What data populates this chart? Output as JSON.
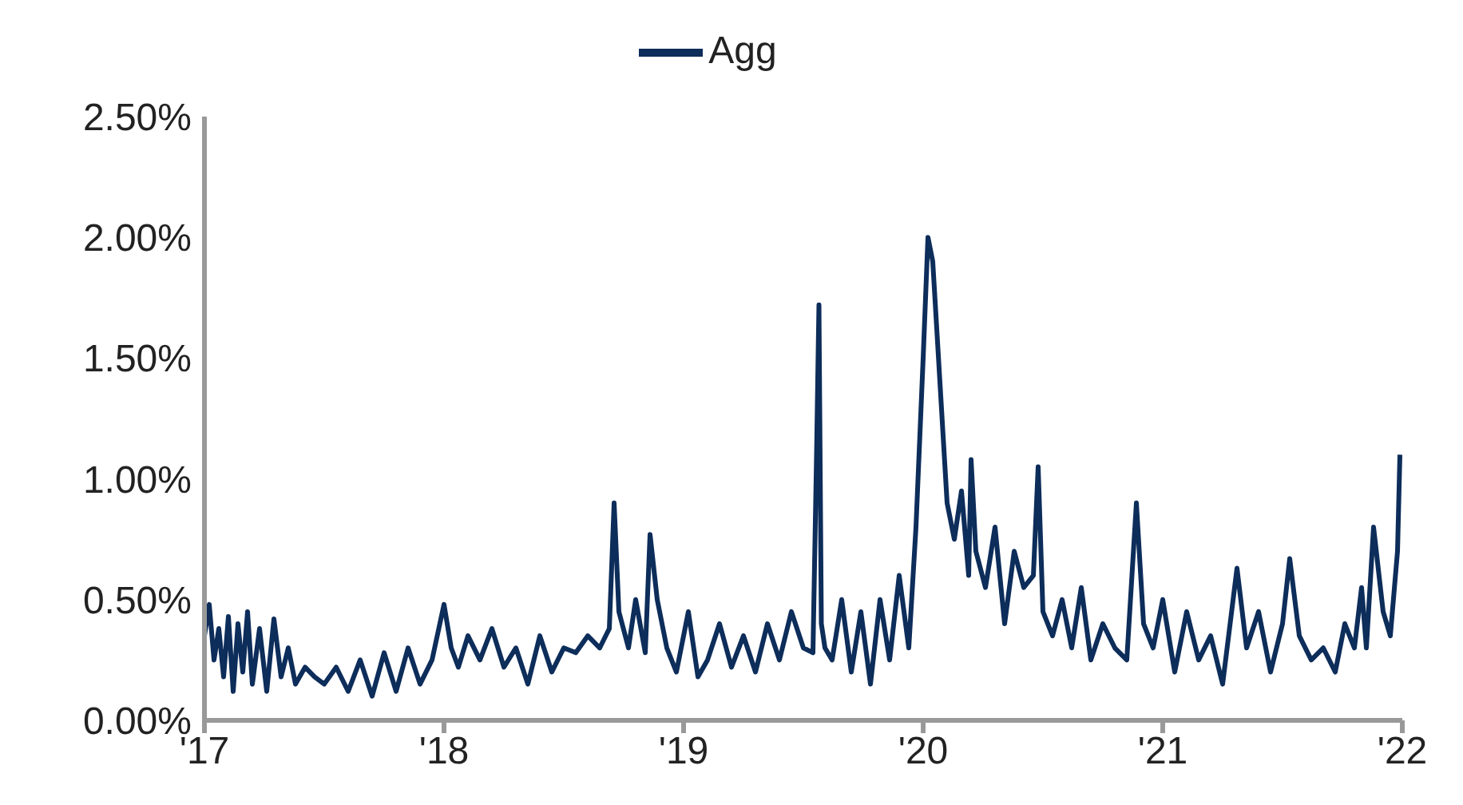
{
  "chart_data": {
    "type": "line",
    "legend": "top",
    "grid": false,
    "marker": "none",
    "line_style": "solid",
    "x": [
      2017,
      2017.02,
      2017.04,
      2017.06,
      2017.08,
      2017.1,
      2017.12,
      2017.14,
      2017.16,
      2017.18,
      2017.2,
      2017.23,
      2017.26,
      2017.29,
      2017.32,
      2017.35,
      2017.38,
      2017.42,
      2017.46,
      2017.5,
      2017.55,
      2017.6,
      2017.65,
      2017.7,
      2017.75,
      2017.8,
      2017.85,
      2017.9,
      2017.95,
      2018,
      2018.03,
      2018.06,
      2018.1,
      2018.15,
      2018.2,
      2018.25,
      2018.3,
      2018.35,
      2018.4,
      2018.45,
      2018.5,
      2018.55,
      2018.6,
      2018.65,
      2018.69,
      2018.71,
      2018.73,
      2018.77,
      2018.8,
      2018.84,
      2018.86,
      2018.89,
      2018.93,
      2018.97,
      2019.02,
      2019.06,
      2019.1,
      2019.15,
      2019.2,
      2019.25,
      2019.3,
      2019.35,
      2019.4,
      2019.45,
      2019.5,
      2019.54,
      2019.555,
      2019.565,
      2019.575,
      2019.59,
      2019.62,
      2019.66,
      2019.7,
      2019.74,
      2019.78,
      2019.82,
      2019.86,
      2019.9,
      2019.94,
      2019.97,
      2020,
      2020.02,
      2020.04,
      2020.07,
      2020.1,
      2020.13,
      2020.16,
      2020.19,
      2020.2,
      2020.22,
      2020.26,
      2020.3,
      2020.34,
      2020.38,
      2020.42,
      2020.46,
      2020.48,
      2020.5,
      2020.54,
      2020.58,
      2020.62,
      2020.66,
      2020.7,
      2020.75,
      2020.8,
      2020.85,
      2020.89,
      2020.92,
      2020.96,
      2021,
      2021.05,
      2021.1,
      2021.15,
      2021.2,
      2021.25,
      2021.31,
      2021.35,
      2021.4,
      2021.45,
      2021.5,
      2021.53,
      2021.57,
      2021.62,
      2021.67,
      2021.72,
      2021.76,
      2021.8,
      2021.83,
      2021.85,
      2021.88,
      2021.92,
      2021.95,
      2021.98,
      2021.99
    ],
    "series": [
      {
        "name": "Agg",
        "color": "#0d2d5a",
        "values": [
          0.35,
          0.48,
          0.25,
          0.38,
          0.18,
          0.43,
          0.12,
          0.4,
          0.2,
          0.45,
          0.15,
          0.38,
          0.12,
          0.42,
          0.18,
          0.3,
          0.15,
          0.22,
          0.18,
          0.15,
          0.22,
          0.12,
          0.25,
          0.1,
          0.28,
          0.12,
          0.3,
          0.15,
          0.25,
          0.48,
          0.3,
          0.22,
          0.35,
          0.25,
          0.38,
          0.22,
          0.3,
          0.15,
          0.35,
          0.2,
          0.3,
          0.28,
          0.35,
          0.3,
          0.38,
          0.9,
          0.45,
          0.3,
          0.5,
          0.28,
          0.77,
          0.5,
          0.3,
          0.2,
          0.45,
          0.18,
          0.25,
          0.4,
          0.22,
          0.35,
          0.2,
          0.4,
          0.25,
          0.45,
          0.3,
          0.28,
          1.1,
          1.72,
          0.4,
          0.3,
          0.25,
          0.5,
          0.2,
          0.45,
          0.15,
          0.5,
          0.25,
          0.6,
          0.3,
          0.8,
          1.5,
          2.0,
          1.9,
          1.4,
          0.9,
          0.75,
          0.95,
          0.6,
          1.08,
          0.7,
          0.55,
          0.8,
          0.4,
          0.7,
          0.55,
          0.6,
          1.05,
          0.45,
          0.35,
          0.5,
          0.3,
          0.55,
          0.25,
          0.4,
          0.3,
          0.25,
          0.9,
          0.4,
          0.3,
          0.5,
          0.2,
          0.45,
          0.25,
          0.35,
          0.15,
          0.63,
          0.3,
          0.45,
          0.2,
          0.4,
          0.67,
          0.35,
          0.25,
          0.3,
          0.2,
          0.4,
          0.3,
          0.55,
          0.3,
          0.8,
          0.45,
          0.35,
          0.7,
          1.1
        ]
      }
    ],
    "xlim": [
      2017,
      2022
    ],
    "xticks": [
      {
        "value": 2017,
        "label": "'17"
      },
      {
        "value": 2018,
        "label": "'18"
      },
      {
        "value": 2019,
        "label": "'19"
      },
      {
        "value": 2020,
        "label": "'20"
      },
      {
        "value": 2021,
        "label": "'21"
      },
      {
        "value": 2022,
        "label": "'22"
      }
    ],
    "ylim": [
      0,
      2.5
    ],
    "yticks": [
      {
        "value": 0,
        "label": "0.00%"
      },
      {
        "value": 0.5,
        "label": "0.50%"
      },
      {
        "value": 1,
        "label": "1.00%"
      },
      {
        "value": 1.5,
        "label": "1.50%"
      },
      {
        "value": 2,
        "label": "2.00%"
      },
      {
        "value": 2.5,
        "label": "2.50%"
      }
    ]
  }
}
